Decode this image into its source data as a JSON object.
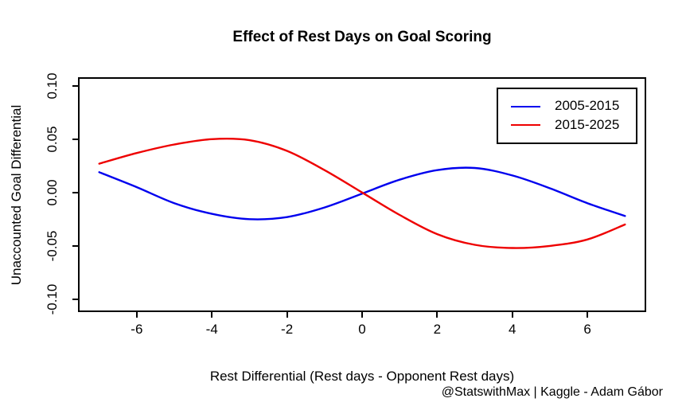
{
  "chart": {
    "title": "Effect of Rest Days on Goal Scoring",
    "x_axis": {
      "label": "Rest Differential (Rest days - Opponent Rest days)",
      "tick_labels": [
        "-6",
        "-4",
        "-2",
        "0",
        "2",
        "4",
        "6"
      ]
    },
    "y_axis": {
      "label": "Unaccounted Goal Differential",
      "tick_labels": [
        "0.10",
        "0.05",
        "0.00",
        "-0.05",
        "-0.10"
      ]
    },
    "legend": {
      "items": [
        {
          "label": "2005-2015"
        },
        {
          "label": "2015-2025"
        }
      ]
    },
    "caption": "@StatswithMax | Kaggle - Adam Gábor"
  },
  "colors": {
    "series_2005_2015": "#0000EE",
    "series_2015_2025": "#EE0000",
    "axis": "#000000",
    "background": "#FFFFFF"
  },
  "chart_data": {
    "type": "line",
    "title": "Effect of Rest Days on Goal Scoring",
    "xlabel": "Rest Differential (Rest days - Opponent Rest days)",
    "ylabel": "Unaccounted Goal Differential",
    "x": [
      -7,
      -6,
      -5,
      -4,
      -3,
      -2,
      -1,
      0,
      1,
      2,
      3,
      4,
      5,
      6,
      7
    ],
    "series": [
      {
        "name": "2005-2015",
        "color": "#0000EE",
        "values": [
          0.019,
          0.005,
          -0.01,
          -0.02,
          -0.025,
          -0.023,
          -0.014,
          -0.001,
          0.012,
          0.021,
          0.023,
          0.016,
          0.004,
          -0.01,
          -0.022
        ]
      },
      {
        "name": "2015-2025",
        "color": "#EE0000",
        "values": [
          0.027,
          0.037,
          0.045,
          0.05,
          0.049,
          0.039,
          0.021,
          0.0,
          -0.021,
          -0.039,
          -0.049,
          -0.052,
          -0.05,
          -0.044,
          -0.03
        ]
      }
    ],
    "xlim": [
      -7.565,
      7.565
    ],
    "ylim": [
      -0.112,
      0.108
    ],
    "x_ticks": [
      -6,
      -4,
      -2,
      0,
      2,
      4,
      6
    ],
    "y_ticks": [
      0.1,
      0.05,
      0.0,
      -0.05,
      -0.1
    ],
    "grid": false,
    "legend_position": "top-right"
  }
}
